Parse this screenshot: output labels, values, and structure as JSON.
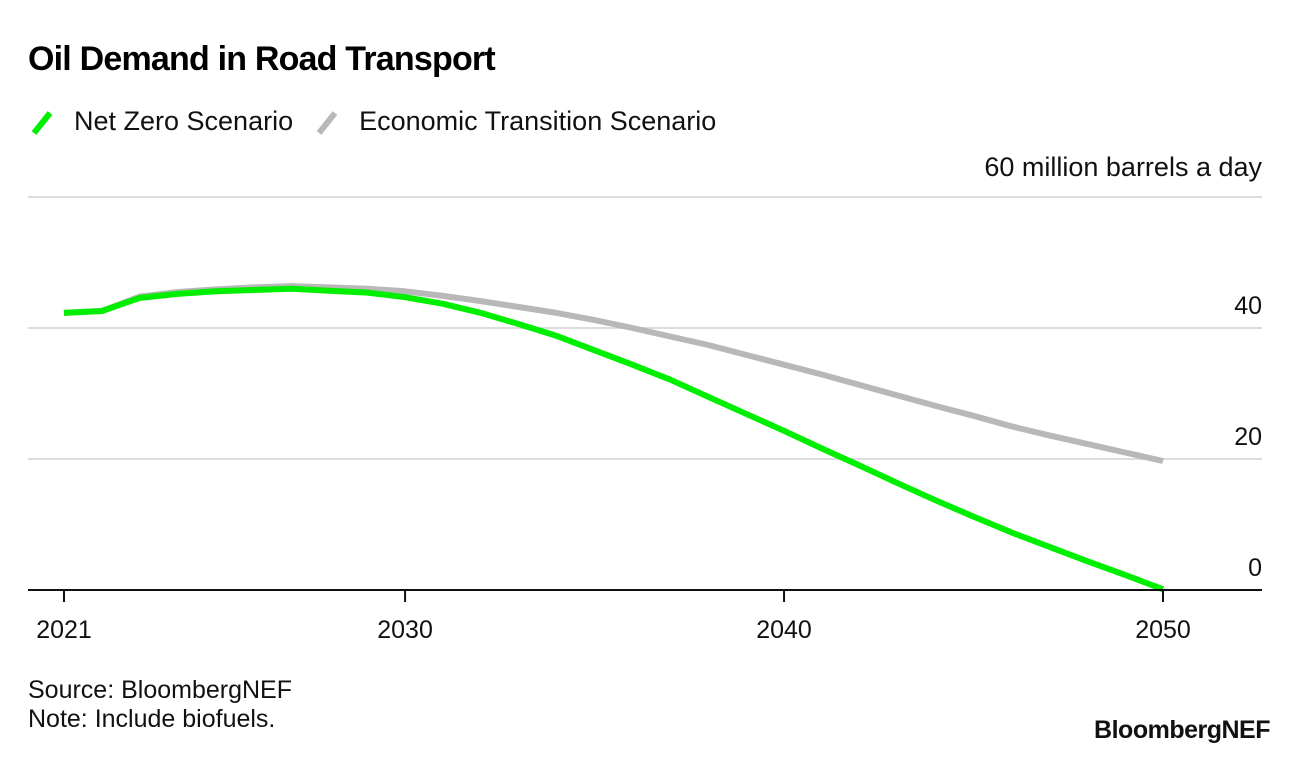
{
  "chart_data": {
    "type": "line",
    "title": "Oil Demand in Road Transport",
    "ylabel": "million barrels a day",
    "unit_label": "60 million barrels a day",
    "xlabel": "",
    "xlim": [
      2021,
      2050
    ],
    "ylim": [
      0,
      60
    ],
    "x_ticks": [
      2021,
      2030,
      2040,
      2050
    ],
    "x_tick_labels": [
      "2021",
      "2030",
      "2040",
      "2050"
    ],
    "y_ticks": [
      0,
      20,
      40,
      60
    ],
    "y_tick_labels": [
      "0",
      "20",
      "40",
      "60 million barrels a day"
    ],
    "grid": true,
    "legend_position": "top-left",
    "x": [
      2021,
      2022,
      2023,
      2024,
      2025,
      2026,
      2027,
      2028,
      2029,
      2030,
      2031,
      2032,
      2033,
      2034,
      2035,
      2036,
      2037,
      2038,
      2039,
      2040,
      2041,
      2042,
      2043,
      2044,
      2045,
      2046,
      2047,
      2048,
      2049,
      2050
    ],
    "series": [
      {
        "name": "Net Zero Scenario",
        "color": "#00ee00",
        "values": [
          42.3,
          42.6,
          44.6,
          45.2,
          45.6,
          45.8,
          46.0,
          45.7,
          45.4,
          44.7,
          43.7,
          42.3,
          40.6,
          38.8,
          36.6,
          34.4,
          32.1,
          29.5,
          26.9,
          24.3,
          21.6,
          19.0,
          16.3,
          13.7,
          11.2,
          8.8,
          6.6,
          4.4,
          2.3,
          0.1
        ]
      },
      {
        "name": "Economic Transition Scenario",
        "color": "#b8b8b8",
        "values": [
          42.3,
          42.6,
          44.8,
          45.5,
          45.9,
          46.2,
          46.4,
          46.2,
          46.0,
          45.6,
          44.9,
          44.1,
          43.2,
          42.3,
          41.2,
          40.0,
          38.7,
          37.4,
          35.9,
          34.4,
          32.9,
          31.3,
          29.7,
          28.1,
          26.6,
          25.0,
          23.6,
          22.3,
          21.0,
          19.7
        ]
      }
    ]
  },
  "legend": {
    "items": [
      {
        "label": "Net Zero Scenario",
        "color": "#00ee00"
      },
      {
        "label": "Economic Transition Scenario",
        "color": "#b8b8b8"
      }
    ]
  },
  "footer": {
    "source": "Source: BloombergNEF",
    "note": "Note: Include biofuels.",
    "brand": "BloombergNEF"
  }
}
